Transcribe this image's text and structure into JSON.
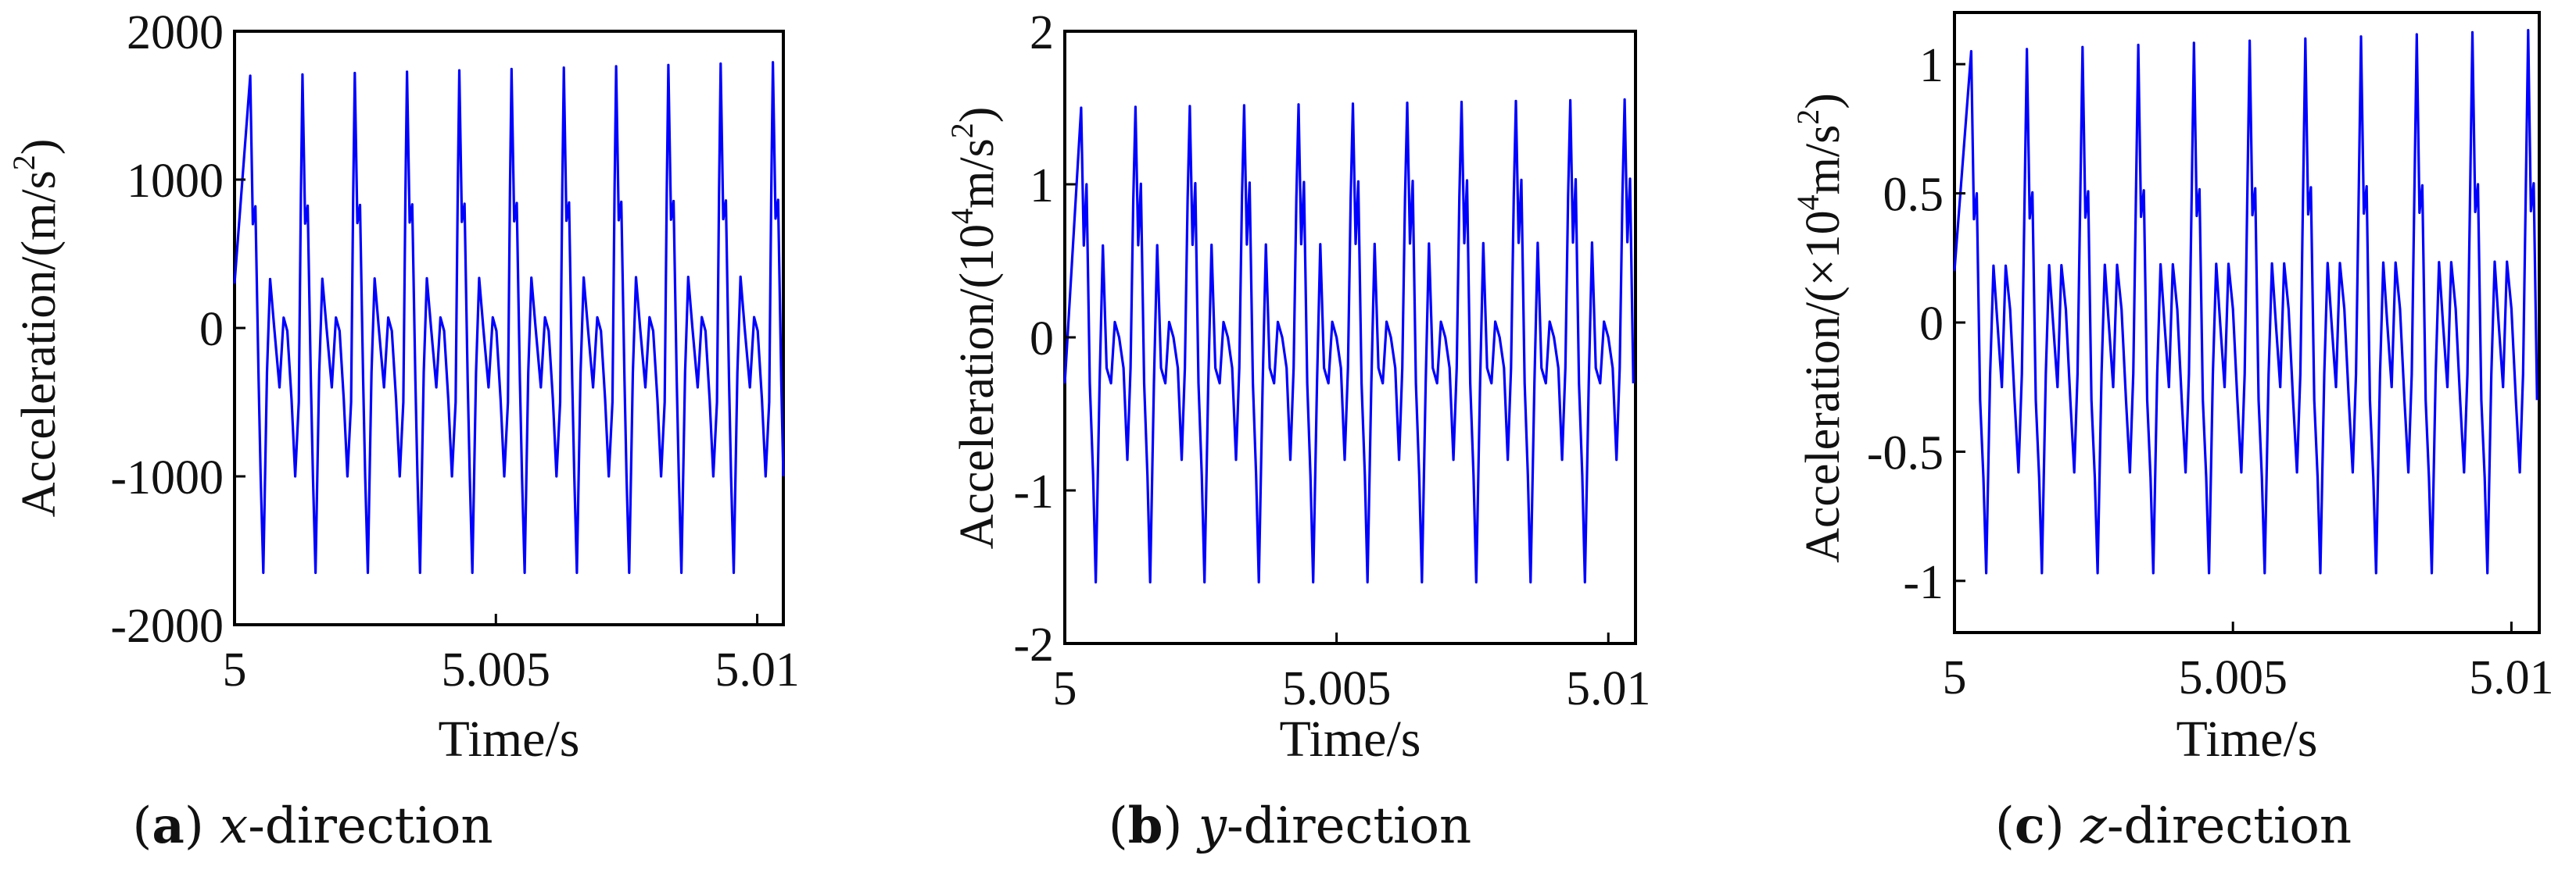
{
  "chart_data": [
    {
      "type": "line",
      "panel": "a",
      "caption": {
        "label": "a",
        "variable": "x",
        "suffix": "-direction"
      },
      "xlabel": "Time/s",
      "ylabel": {
        "main": "Acceleration/(m/s",
        "sup": "2",
        "close": ")"
      },
      "xlim": [
        5,
        5.0105
      ],
      "ylim": [
        -2000,
        2000
      ],
      "xticks": [
        5,
        5.005,
        5.01
      ],
      "xtick_labels": [
        "5",
        "5.005",
        "5.01"
      ],
      "yticks": [
        -2000,
        -1000,
        0,
        1000,
        2000
      ],
      "ytick_labels": [
        "-2000",
        "-1000",
        "0",
        "1000",
        "2000"
      ],
      "series": [
        {
          "color": "#0000ff",
          "period": 0.001,
          "t0": 5.0003,
          "start": 300,
          "points": [
            [
              0,
              1700
            ],
            [
              0.05,
              700
            ],
            [
              0.1,
              820
            ],
            [
              0.16,
              -350
            ],
            [
              0.2,
              -1000
            ],
            [
              0.25,
              -1650
            ],
            [
              0.32,
              -300
            ],
            [
              0.38,
              330
            ],
            [
              0.46,
              0
            ],
            [
              0.56,
              -400
            ],
            [
              0.64,
              70
            ],
            [
              0.71,
              -20
            ],
            [
              0.79,
              -480
            ],
            [
              0.86,
              -1000
            ],
            [
              0.93,
              -500
            ],
            [
              0.97,
              900
            ],
            [
              1,
              1700
            ]
          ],
          "peak_max": 1800,
          "peak_min": -1650
        }
      ]
    },
    {
      "type": "line",
      "panel": "b",
      "caption": {
        "label": "b",
        "variable": "y",
        "suffix": "-direction"
      },
      "xlabel": "Time/s",
      "ylabel": {
        "main": "Acceleration/(10",
        "sup": "4",
        "mid": "m/s",
        "sup2": "2",
        "close": ")"
      },
      "xlim": [
        5,
        5.0105
      ],
      "ylim": [
        -2,
        2
      ],
      "xticks": [
        5,
        5.005,
        5.01
      ],
      "xtick_labels": [
        "5",
        "5.005",
        "5.01"
      ],
      "yticks": [
        -2,
        -1,
        0,
        1,
        2
      ],
      "ytick_labels": [
        "-2",
        "-1",
        "0",
        "1",
        "2"
      ],
      "series": [
        {
          "color": "#0000ff",
          "period": 0.001,
          "t0": 5.0003,
          "start": -0.3,
          "points": [
            [
              0,
              1.5
            ],
            [
              0.05,
              0.6
            ],
            [
              0.1,
              1.0
            ],
            [
              0.16,
              -0.3
            ],
            [
              0.22,
              -0.9
            ],
            [
              0.27,
              -1.6
            ],
            [
              0.34,
              -0.3
            ],
            [
              0.4,
              0.6
            ],
            [
              0.47,
              -0.2
            ],
            [
              0.55,
              -0.3
            ],
            [
              0.62,
              0.1
            ],
            [
              0.7,
              0.0
            ],
            [
              0.78,
              -0.2
            ],
            [
              0.85,
              -0.8
            ],
            [
              0.91,
              -0.2
            ],
            [
              0.96,
              0.9
            ],
            [
              1,
              1.5
            ]
          ],
          "peak_max": 1.56,
          "peak_min": -1.75
        }
      ]
    },
    {
      "type": "line",
      "panel": "c",
      "caption": {
        "label": "c",
        "variable": "z",
        "suffix": "-direction"
      },
      "xlabel": "Time/s",
      "ylabel": {
        "main": "Acceleration/(×10",
        "sup": "4",
        "mid": "m/s",
        "sup2": "2",
        "close": ")"
      },
      "xlim": [
        5,
        5.0105
      ],
      "ylim": [
        -1.2,
        1.2
      ],
      "xticks": [
        5,
        5.005,
        5.01
      ],
      "xtick_labels": [
        "5",
        "5.005",
        "5.01"
      ],
      "yticks": [
        -1,
        -0.5,
        0,
        0.5,
        1
      ],
      "ytick_labels": [
        "-1",
        "-0.5",
        "0",
        "0.5",
        "1"
      ],
      "series": [
        {
          "color": "#0000ff",
          "period": 0.001,
          "t0": 5.0003,
          "start": 0.2,
          "points": [
            [
              0,
              1.05
            ],
            [
              0.05,
              0.4
            ],
            [
              0.1,
              0.5
            ],
            [
              0.16,
              -0.3
            ],
            [
              0.22,
              -0.6
            ],
            [
              0.27,
              -0.97
            ],
            [
              0.34,
              -0.2
            ],
            [
              0.4,
              0.22
            ],
            [
              0.47,
              0.0
            ],
            [
              0.55,
              -0.25
            ],
            [
              0.62,
              0.22
            ],
            [
              0.7,
              0.05
            ],
            [
              0.78,
              -0.3
            ],
            [
              0.85,
              -0.58
            ],
            [
              0.91,
              -0.2
            ],
            [
              0.96,
              0.5
            ],
            [
              1,
              1.05
            ]
          ],
          "peak_max": 1.14,
          "peak_min": -0.97
        }
      ]
    }
  ]
}
